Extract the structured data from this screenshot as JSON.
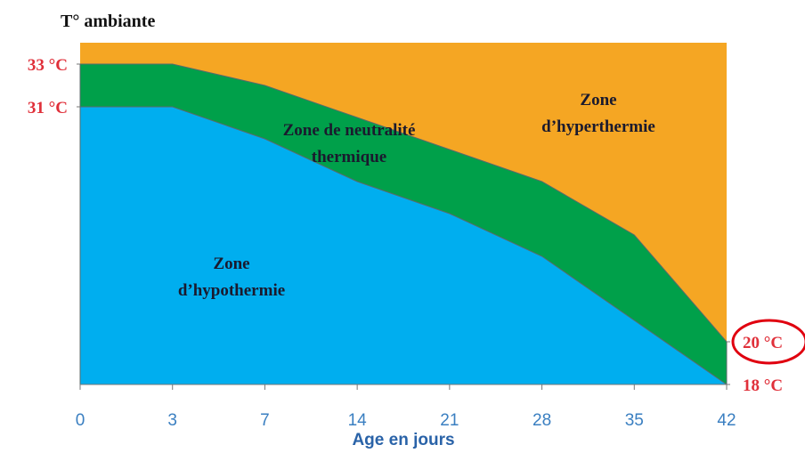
{
  "chart_data": {
    "type": "zone_area",
    "y_title": "T° ambiante",
    "x_title": "Age en jours",
    "categories": [
      "0",
      "3",
      "7",
      "14",
      "21",
      "28",
      "35",
      "42"
    ],
    "series": [
      {
        "name": [
          "Zone",
          "d’hypothermie"
        ],
        "color": "#00aeef",
        "values": [
          31,
          31,
          29.5,
          27.5,
          26,
          24,
          21,
          18
        ]
      },
      {
        "name": [
          "Zone de neutralité",
          "thermique"
        ],
        "color": "#00a04a",
        "values": [
          33,
          33,
          32,
          30.5,
          29,
          27.5,
          25,
          20
        ]
      }
    ],
    "top_zone": {
      "name": [
        "Zone",
        "d’hyperthermie"
      ],
      "color": "#f5a623"
    },
    "ylim": [
      18,
      34
    ],
    "yticks": [
      {
        "value": 33,
        "label": "33 °C"
      },
      {
        "value": 31,
        "label": "31 °C"
      },
      {
        "value": 20,
        "label": "20 °C"
      },
      {
        "value": 18,
        "label": "18 °C"
      }
    ]
  }
}
